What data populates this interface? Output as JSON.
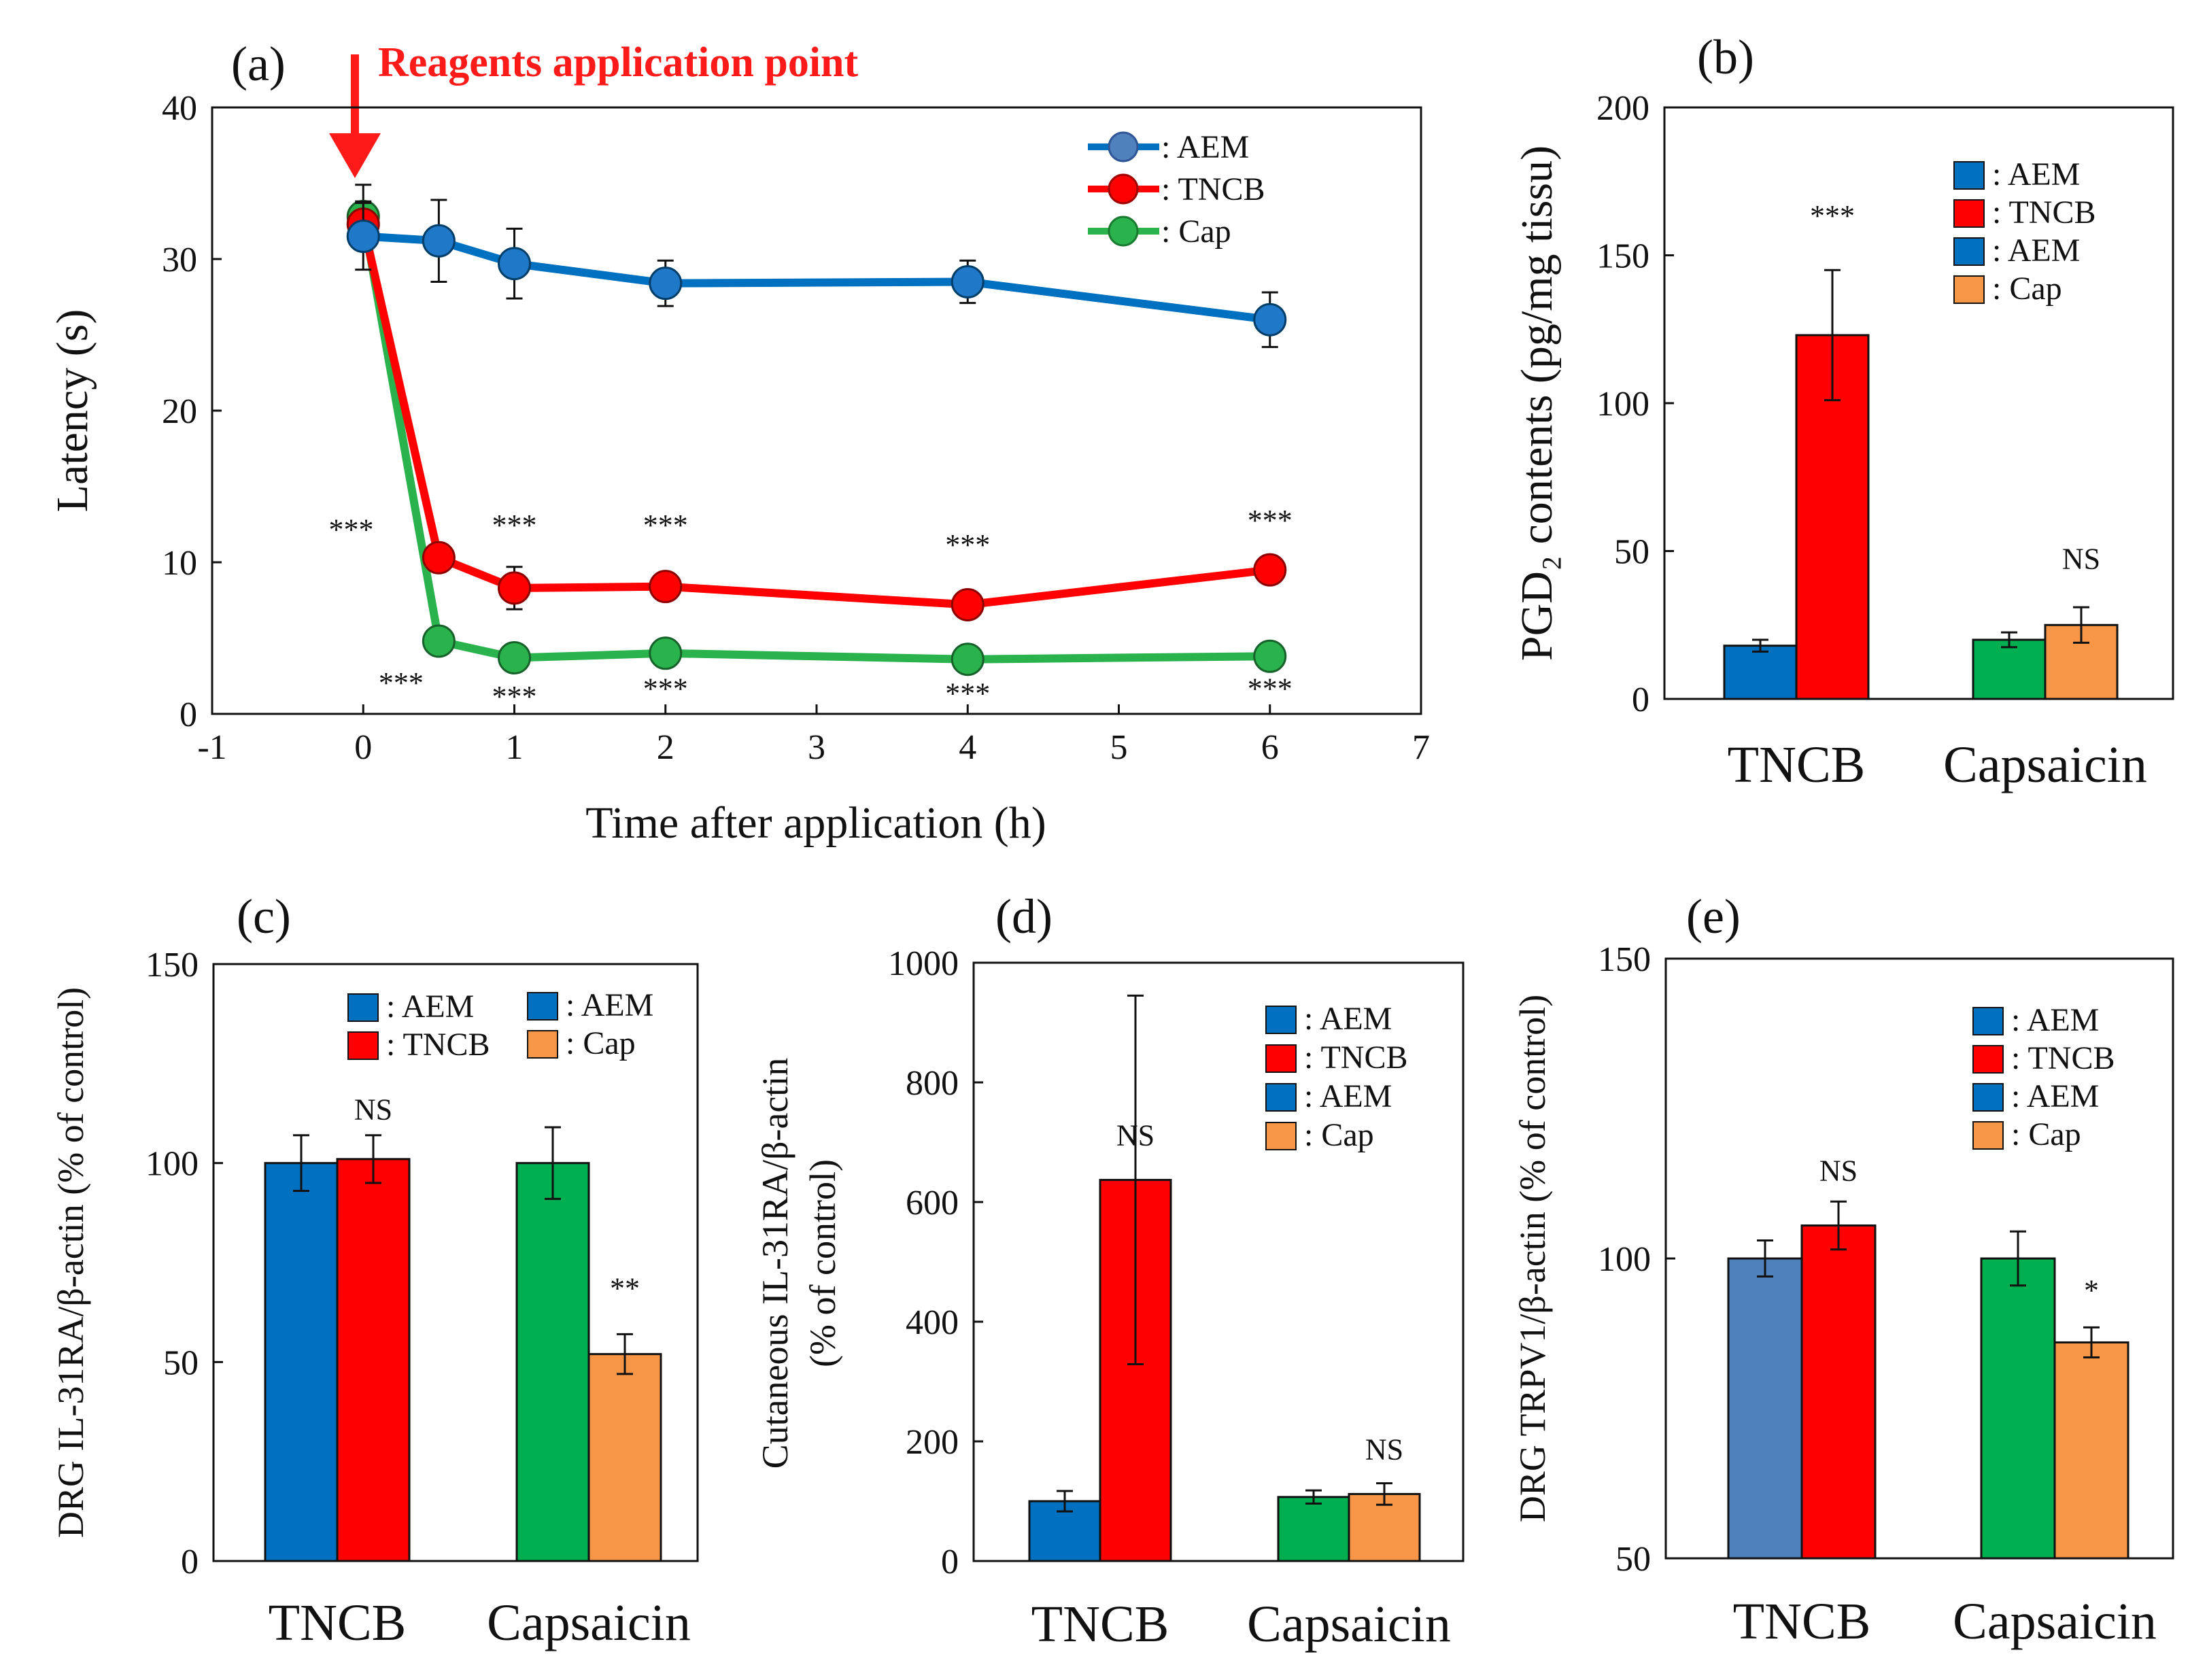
{
  "colors": {
    "aem": "#0070c0",
    "aem_light": "#4f81bd",
    "tncb": "#ff0000",
    "cap_line": "#2ab24c",
    "cap_bar": "#f79646",
    "capsaicin_bar": "#00b050",
    "arrow": "#ff1a1a"
  },
  "chart_data": [
    {
      "id": "a",
      "type": "line",
      "panel_label": "(a)",
      "annotation": "Reagents application point",
      "xlabel": "Time after application (h)",
      "ylabel": "Latency (s)",
      "xlim": [
        -1,
        7
      ],
      "ylim": [
        0,
        40
      ],
      "xticks": [
        -1,
        0,
        1,
        2,
        3,
        4,
        5,
        6,
        7
      ],
      "yticks": [
        0,
        10,
        20,
        30,
        40
      ],
      "legend_position": "top-right",
      "x": [
        0,
        0.5,
        1,
        2,
        4,
        6
      ],
      "series": [
        {
          "name": ": AEM",
          "color_key": "aem",
          "values": [
            31.5,
            31.2,
            29.7,
            28.4,
            28.5,
            26.0
          ],
          "errors": [
            2.2,
            2.7,
            2.3,
            1.5,
            1.4,
            1.8
          ]
        },
        {
          "name": ": TNCB",
          "color_key": "tncb",
          "values": [
            32.3,
            10.3,
            8.3,
            8.4,
            7.2,
            9.5
          ],
          "errors": [
            1.5,
            0.6,
            1.4,
            0.7,
            0.6,
            0.6
          ]
        },
        {
          "name": ": Cap",
          "color_key": "cap_line",
          "values": [
            32.8,
            4.8,
            3.7,
            4.0,
            3.6,
            3.8
          ],
          "errors": [
            2.1,
            0.5,
            0.4,
            0.5,
            0.4,
            0.4
          ]
        }
      ],
      "significance": [
        {
          "text": "***",
          "x": -0.08,
          "y": 11.5
        },
        {
          "text": "***",
          "x": 1.0,
          "y": 11.8
        },
        {
          "text": "***",
          "x": 2.0,
          "y": 11.8
        },
        {
          "text": "***",
          "x": 4.0,
          "y": 10.5
        },
        {
          "text": "***",
          "x": 6.0,
          "y": 12.1
        },
        {
          "text": "***",
          "x": 0.25,
          "y": 1.4
        },
        {
          "text": "***",
          "x": 1.0,
          "y": 0.5
        },
        {
          "text": "***",
          "x": 2.0,
          "y": 1.0
        },
        {
          "text": "***",
          "x": 4.0,
          "y": 0.7
        },
        {
          "text": "***",
          "x": 6.0,
          "y": 1.0
        }
      ]
    },
    {
      "id": "b",
      "type": "bar",
      "panel_label": "(b)",
      "ylabel": "PGD₂ contents (pg/mg tissu)",
      "ylim": [
        0,
        200
      ],
      "yticks": [
        0,
        50,
        100,
        150,
        200
      ],
      "categories": [
        "TNCB",
        "Capsaicin"
      ],
      "legend_position": "top-right",
      "legend": [
        {
          "label": ": AEM",
          "color_key": "aem"
        },
        {
          "label": ": TNCB",
          "color_key": "tncb"
        },
        {
          "label": ": AEM",
          "color_key": "aem"
        },
        {
          "label": ": Cap",
          "color_key": "cap_bar"
        }
      ],
      "bars": [
        {
          "group": 0,
          "color_key": "aem",
          "value": 18,
          "error": 2
        },
        {
          "group": 0,
          "color_key": "tncb",
          "value": 123,
          "error": 22
        },
        {
          "group": 1,
          "color_key": "capsaicin_bar",
          "value": 20,
          "error": 2.5
        },
        {
          "group": 1,
          "color_key": "cap_bar",
          "value": 25,
          "error": 6
        }
      ],
      "significance": [
        {
          "group": 0,
          "text": "***",
          "y": 160
        },
        {
          "group": 1,
          "text": "NS",
          "y": 44
        }
      ]
    },
    {
      "id": "c",
      "type": "bar",
      "panel_label": "(c)",
      "ylabel": "DRG IL-31RA/β-actin (% of control)",
      "ylim": [
        0,
        150
      ],
      "yticks": [
        0,
        50,
        100,
        150
      ],
      "categories": [
        "TNCB",
        "Capsaicin"
      ],
      "legend_position": "top-right",
      "legend_columns": 2,
      "legend": [
        {
          "label": ": AEM",
          "color_key": "aem"
        },
        {
          "label": ": TNCB",
          "color_key": "tncb"
        },
        {
          "label": ": AEM",
          "color_key": "aem"
        },
        {
          "label": ": Cap",
          "color_key": "cap_bar"
        }
      ],
      "bars": [
        {
          "group": 0,
          "color_key": "aem",
          "value": 100,
          "error": 7
        },
        {
          "group": 0,
          "color_key": "tncb",
          "value": 101,
          "error": 6
        },
        {
          "group": 1,
          "color_key": "capsaicin_bar",
          "value": 100,
          "error": 9
        },
        {
          "group": 1,
          "color_key": "cap_bar",
          "value": 52,
          "error": 5
        }
      ],
      "significance": [
        {
          "group": 0,
          "text": "NS",
          "y": 111
        },
        {
          "group": 1,
          "text": "**",
          "y": 66
        }
      ]
    },
    {
      "id": "d",
      "type": "bar",
      "panel_label": "(d)",
      "ylabel": "Cutaneous IL-31RA/β-actin",
      "ylabel2": "(% of control)",
      "ylim": [
        0,
        1000
      ],
      "yticks": [
        0,
        200,
        400,
        600,
        800,
        1000
      ],
      "categories": [
        "TNCB",
        "Capsaicin"
      ],
      "legend_position": "top-right",
      "legend": [
        {
          "label": ": AEM",
          "color_key": "aem"
        },
        {
          "label": ": TNCB",
          "color_key": "tncb"
        },
        {
          "label": ": AEM",
          "color_key": "aem"
        },
        {
          "label": ": Cap",
          "color_key": "cap_bar"
        }
      ],
      "bars": [
        {
          "group": 0,
          "color_key": "aem",
          "value": 100,
          "error": 17
        },
        {
          "group": 0,
          "color_key": "tncb",
          "value": 637,
          "error": 308
        },
        {
          "group": 1,
          "color_key": "capsaicin_bar",
          "value": 107,
          "error": 11
        },
        {
          "group": 1,
          "color_key": "cap_bar",
          "value": 112,
          "error": 18
        }
      ],
      "significance": [
        {
          "group": 0,
          "text": "NS",
          "y": 695
        },
        {
          "group": 1,
          "text": "NS",
          "y": 170
        }
      ]
    },
    {
      "id": "e",
      "type": "bar",
      "panel_label": "(e)",
      "ylabel": "DRG TRPV1/β-actin (% of control)",
      "ylim": [
        50,
        150
      ],
      "yticks": [
        50,
        100,
        150
      ],
      "categories": [
        "TNCB",
        "Capsaicin"
      ],
      "legend_position": "top-right",
      "legend": [
        {
          "label": ": AEM",
          "color_key": "aem"
        },
        {
          "label": ": TNCB",
          "color_key": "tncb"
        },
        {
          "label": ": AEM",
          "color_key": "aem"
        },
        {
          "label": ": Cap",
          "color_key": "cap_bar"
        }
      ],
      "bars": [
        {
          "group": 0,
          "color_key": "aem_light",
          "value": 100,
          "error": 3
        },
        {
          "group": 0,
          "color_key": "tncb",
          "value": 105.5,
          "error": 4
        },
        {
          "group": 1,
          "color_key": "capsaicin_bar",
          "value": 100,
          "error": 4.5
        },
        {
          "group": 1,
          "color_key": "cap_bar",
          "value": 86,
          "error": 2.5
        }
      ],
      "significance": [
        {
          "group": 0,
          "text": "NS",
          "y": 113
        },
        {
          "group": 1,
          "text": "*",
          "y": 93
        }
      ]
    }
  ]
}
